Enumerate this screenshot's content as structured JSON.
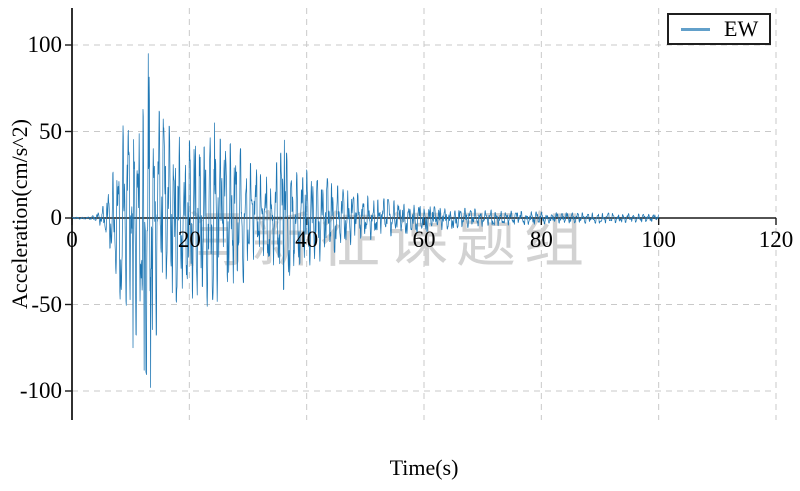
{
  "figure": {
    "background": "#ffffff",
    "watermark": {
      "text": "闫新征课题组",
      "color": "#d2d2d2"
    }
  },
  "chart_data": {
    "type": "line",
    "title": "",
    "xlabel": "Time(s)",
    "ylabel": "Acceleration(cm/s^2)",
    "xlim": [
      0,
      120
    ],
    "ylim": [
      -117,
      121
    ],
    "xticks": [
      0,
      20,
      40,
      60,
      80,
      100,
      120
    ],
    "yticks": [
      -100,
      -50,
      0,
      50,
      100
    ],
    "grid": true,
    "grid_style": "dashed",
    "grid_color": "#c9c9c9",
    "axis_color": "#1a1a1a",
    "legend": {
      "position": "upper-right",
      "entries": [
        {
          "label": "EW",
          "color": "#1f77b4"
        }
      ]
    },
    "series": [
      {
        "name": "EW",
        "color": "#1f77b4",
        "signal": {
          "description": "Earthquake ground-motion acceleration record (EW component); waveform reconstructed from amplitude envelope read off the plot",
          "duration_s": 100,
          "sample_dt_s": 0.05,
          "peak_positive": {
            "t": 13.0,
            "value": 95
          },
          "peak_negative": {
            "t": 13.4,
            "value": -98
          },
          "envelope_t": [
            0,
            3,
            4.5,
            5.5,
            6.5,
            7.5,
            8.5,
            10,
            11,
            12,
            13,
            13.5,
            14,
            15,
            16,
            18,
            20,
            22,
            24,
            26,
            28,
            30,
            32,
            34,
            36,
            38,
            40,
            43,
            46,
            50,
            55,
            60,
            65,
            70,
            75,
            80,
            85,
            90,
            95,
            100
          ],
          "envelope_amp": [
            0.5,
            0.8,
            3,
            8,
            18,
            35,
            52,
            62,
            68,
            80,
            95,
            90,
            72,
            60,
            55,
            48,
            45,
            50,
            52,
            42,
            44,
            33,
            26,
            24,
            42,
            26,
            28,
            24,
            17,
            13,
            10,
            8,
            6,
            5,
            4,
            3.5,
            3,
            3,
            2.5,
            2
          ],
          "spikes": [
            {
              "t": 13.0,
              "v": 95
            },
            {
              "t": 13.4,
              "v": -98
            },
            {
              "t": 12.3,
              "v": -88
            },
            {
              "t": 10.4,
              "v": -75
            },
            {
              "t": 24.3,
              "v": 55
            },
            {
              "t": 36.2,
              "v": 45
            }
          ]
        }
      }
    ]
  }
}
